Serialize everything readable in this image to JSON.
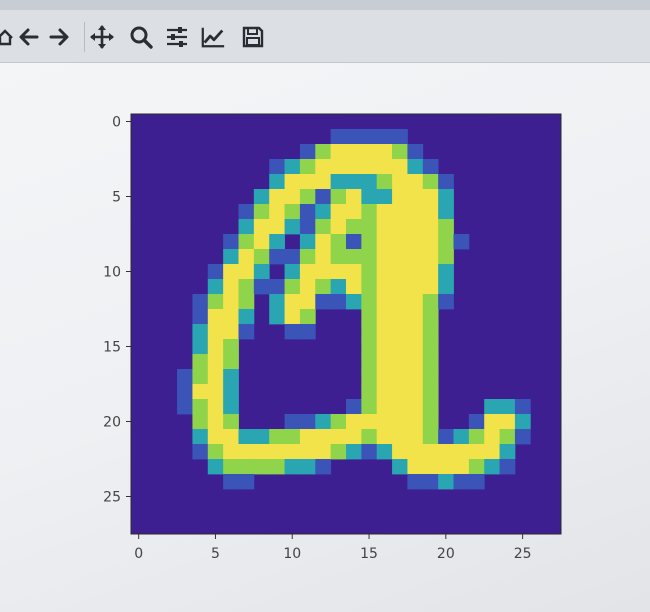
{
  "toolbar": {
    "buttons": [
      {
        "name": "home-button",
        "icon": "home-icon"
      },
      {
        "name": "back-button",
        "icon": "arrow-left-icon"
      },
      {
        "name": "forward-button",
        "icon": "arrow-right-icon"
      },
      {
        "name": "pan-button",
        "icon": "move-icon"
      },
      {
        "name": "zoom-button",
        "icon": "magnifier-icon"
      },
      {
        "name": "subplots-button",
        "icon": "sliders-icon"
      },
      {
        "name": "axes-edit-button",
        "icon": "line-chart-icon"
      },
      {
        "name": "save-button",
        "icon": "floppy-disk-icon"
      }
    ]
  },
  "chart_data": {
    "type": "heatmap",
    "colormap": "viridis",
    "x_ticks": [
      "0",
      "5",
      "10",
      "15",
      "20",
      "25"
    ],
    "y_ticks": [
      "0",
      "5",
      "10",
      "15",
      "20",
      "25"
    ],
    "xlim": [
      -0.5,
      27.5
    ],
    "ylim": [
      27.5,
      -0.5
    ],
    "colors": {
      "background": "#3e1f92",
      "low": "#3b54b8",
      "mid": "#2aa6b3",
      "high": "#f2e34a"
    }
  }
}
